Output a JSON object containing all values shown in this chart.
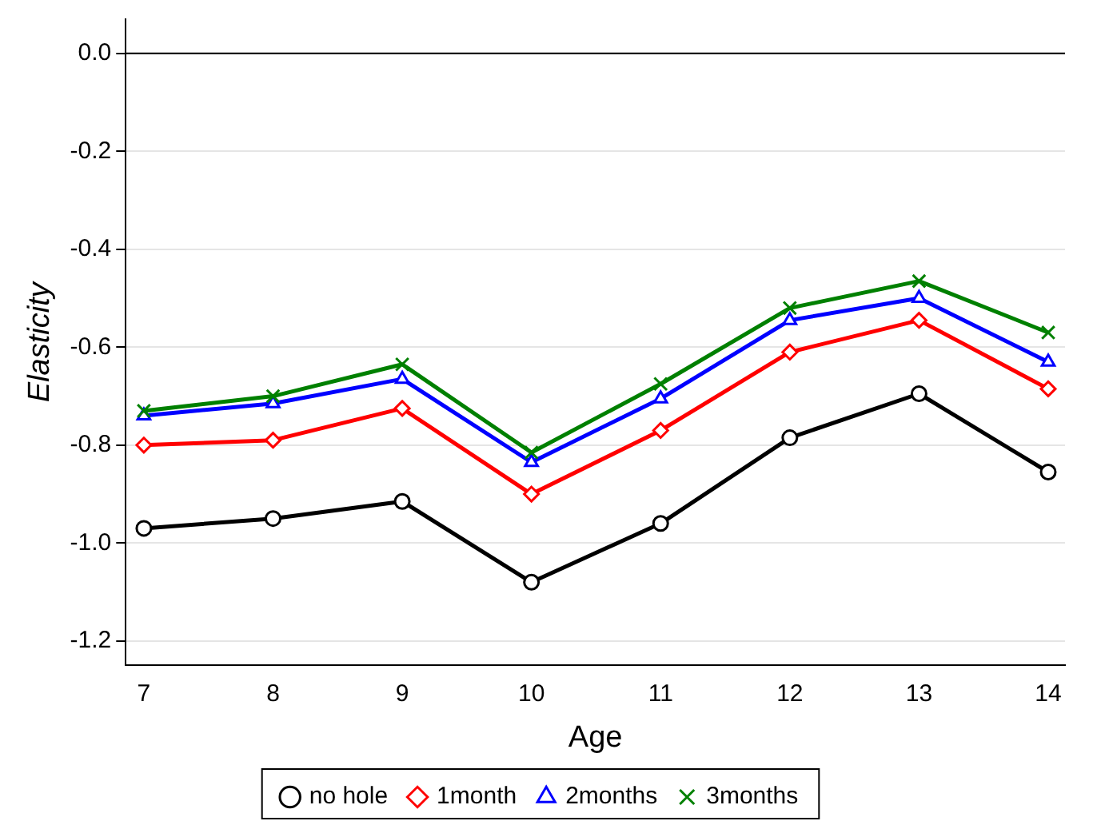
{
  "chart_data": {
    "type": "line",
    "xlabel": "Age",
    "ylabel": "Elasticity",
    "x": [
      7,
      8,
      9,
      10,
      11,
      12,
      13,
      14
    ],
    "series": [
      {
        "name": "no hole",
        "color": "#000000",
        "marker": "circle",
        "values": [
          -0.97,
          -0.95,
          -0.915,
          -1.08,
          -0.96,
          -0.785,
          -0.695,
          -0.855
        ]
      },
      {
        "name": "1month",
        "color": "#ff0000",
        "marker": "diamond",
        "values": [
          -0.8,
          -0.79,
          -0.725,
          -0.9,
          -0.77,
          -0.61,
          -0.545,
          -0.685
        ]
      },
      {
        "name": "2months",
        "color": "#0000ff",
        "marker": "triangle",
        "values": [
          -0.74,
          -0.715,
          -0.665,
          -0.835,
          -0.705,
          -0.545,
          -0.5,
          -0.63
        ]
      },
      {
        "name": "3months",
        "color": "#008000",
        "marker": "cross",
        "values": [
          -0.73,
          -0.7,
          -0.635,
          -0.815,
          -0.675,
          -0.52,
          -0.465,
          -0.57
        ]
      }
    ],
    "xlim": [
      6.86,
      14.13
    ],
    "xticks": [
      7,
      8,
      9,
      10,
      11,
      12,
      13,
      14
    ],
    "ylim": [
      -1.25,
      0.07
    ],
    "yticks": [
      {
        "value": 0,
        "label": "0.0"
      },
      -0.2,
      -0.4,
      -0.6,
      -0.8,
      {
        "value": -1,
        "label": "-1.0"
      },
      -1.2
    ],
    "ref_lines": [
      {
        "axis": "y",
        "value": 0,
        "color": "#000000"
      }
    ],
    "grid": "y",
    "legend": "bottom",
    "line_style": "solid"
  }
}
